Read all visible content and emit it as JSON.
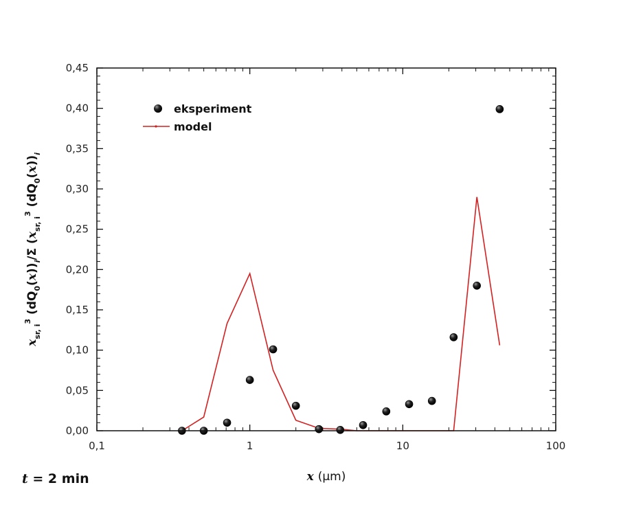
{
  "chart_data": {
    "type": "scatter",
    "xlabel": "x (μm)",
    "ylabel": "x_sr,i^3 (dQ_0(x))_i / Σ (x_sr,i^3 (dQ_0(x))_i)",
    "xscale": "log",
    "xlim": [
      0.1,
      100
    ],
    "ylim": [
      0,
      0.45
    ],
    "x_ticks": [
      "0,1",
      "1",
      "10",
      "100"
    ],
    "y_ticks": [
      "0,00",
      "0,05",
      "0,10",
      "0,15",
      "0,20",
      "0,25",
      "0,30",
      "0,35",
      "0,40",
      "0,45"
    ],
    "legend_position": "top-left",
    "grid": false,
    "series": [
      {
        "name": "eksperiment",
        "kind": "scatter",
        "color": "#111111",
        "points": [
          [
            0.36,
            0.0
          ],
          [
            0.5,
            0.0
          ],
          [
            0.71,
            0.01
          ],
          [
            1.0,
            0.063
          ],
          [
            1.42,
            0.101
          ],
          [
            2.0,
            0.031
          ],
          [
            2.83,
            0.002
          ],
          [
            3.9,
            0.001
          ],
          [
            5.5,
            0.007
          ],
          [
            7.8,
            0.024
          ],
          [
            11.0,
            0.033
          ],
          [
            15.5,
            0.037
          ],
          [
            21.5,
            0.116
          ],
          [
            30.5,
            0.18
          ],
          [
            43.0,
            0.399
          ]
        ]
      },
      {
        "name": "model",
        "kind": "line",
        "color": "#d42020",
        "points": [
          [
            0.36,
            0.0
          ],
          [
            0.5,
            0.017
          ],
          [
            0.71,
            0.133
          ],
          [
            1.0,
            0.195
          ],
          [
            1.42,
            0.075
          ],
          [
            2.0,
            0.013
          ],
          [
            2.83,
            0.003
          ],
          [
            3.9,
            0.002
          ],
          [
            5.0,
            0.0
          ],
          [
            10.0,
            0.0
          ],
          [
            21.5,
            0.0
          ],
          [
            30.5,
            0.29
          ],
          [
            43.0,
            0.106
          ]
        ]
      }
    ]
  },
  "annotation": {
    "time_var": "t",
    "time_value": " = 2 min"
  }
}
